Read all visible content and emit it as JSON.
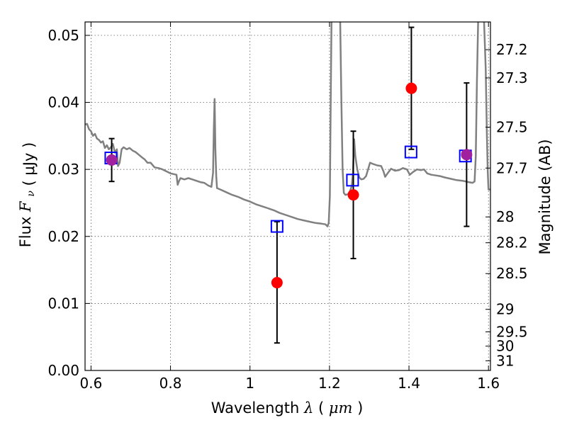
{
  "chart_data": {
    "type": "scatter",
    "xlabel": {
      "text": "Wavelength",
      "symbol": "λ",
      "unit_open": "(",
      "unit": "μm",
      "unit_close": ")"
    },
    "ylabel": {
      "text": "Flux",
      "symbol": "F",
      "subscript": "ν",
      "unit_open": "(",
      "unit": "μJy",
      "unit_close": ")"
    },
    "y2label": "Magnitude (AB)",
    "xlim": [
      0.585,
      1.605
    ],
    "ylim": [
      0.0,
      0.052
    ],
    "x_ticks": [
      {
        "value": 0.6,
        "label": "0.6"
      },
      {
        "value": 0.8,
        "label": "0.8"
      },
      {
        "value": 1.0,
        "label": "1"
      },
      {
        "value": 1.2,
        "label": "1.2"
      },
      {
        "value": 1.4,
        "label": "1.4"
      },
      {
        "value": 1.6,
        "label": "1.6"
      }
    ],
    "y_ticks": [
      {
        "value": 0.0,
        "label": "0.00"
      },
      {
        "value": 0.01,
        "label": "0.01"
      },
      {
        "value": 0.02,
        "label": "0.02"
      },
      {
        "value": 0.03,
        "label": "0.03"
      },
      {
        "value": 0.04,
        "label": "0.04"
      },
      {
        "value": 0.05,
        "label": "0.05"
      }
    ],
    "y2_ticks": [
      {
        "label": "27.2",
        "magnitude": 27.2
      },
      {
        "label": "27.3",
        "magnitude": 27.3
      },
      {
        "label": "27.5",
        "magnitude": 27.5
      },
      {
        "label": "27.7",
        "magnitude": 27.7
      },
      {
        "label": "28",
        "magnitude": 28.0
      },
      {
        "label": "28.2",
        "magnitude": 28.2
      },
      {
        "label": "28.5",
        "magnitude": 28.5
      },
      {
        "label": "29",
        "magnitude": 29.0
      },
      {
        "label": "29.5",
        "magnitude": 29.5
      },
      {
        "label": "30",
        "magnitude": 30.0
      },
      {
        "label": "31",
        "magnitude": 31.0
      }
    ],
    "grid": true,
    "series": [
      {
        "kind": "line",
        "color": "#808080",
        "points": [
          [
            0.585,
            0.0367
          ],
          [
            0.59,
            0.0368
          ],
          [
            0.595,
            0.036
          ],
          [
            0.6,
            0.0357
          ],
          [
            0.605,
            0.035
          ],
          [
            0.61,
            0.0353
          ],
          [
            0.615,
            0.0346
          ],
          [
            0.62,
            0.0344
          ],
          [
            0.625,
            0.034
          ],
          [
            0.63,
            0.0342
          ],
          [
            0.635,
            0.0332
          ],
          [
            0.64,
            0.0336
          ],
          [
            0.645,
            0.033
          ],
          [
            0.65,
            0.0333
          ],
          [
            0.655,
            0.0338
          ],
          [
            0.66,
            0.0325
          ],
          [
            0.665,
            0.033
          ],
          [
            0.668,
            0.0305
          ],
          [
            0.672,
            0.031
          ],
          [
            0.677,
            0.033
          ],
          [
            0.682,
            0.0333
          ],
          [
            0.69,
            0.033
          ],
          [
            0.697,
            0.0332
          ],
          [
            0.705,
            0.0328
          ],
          [
            0.712,
            0.0326
          ],
          [
            0.72,
            0.0322
          ],
          [
            0.728,
            0.0318
          ],
          [
            0.735,
            0.0315
          ],
          [
            0.742,
            0.031
          ],
          [
            0.75,
            0.031
          ],
          [
            0.76,
            0.0303
          ],
          [
            0.77,
            0.0302
          ],
          [
            0.78,
            0.03
          ],
          [
            0.79,
            0.0297
          ],
          [
            0.8,
            0.0294
          ],
          [
            0.808,
            0.0293
          ],
          [
            0.815,
            0.0292
          ],
          [
            0.818,
            0.0277
          ],
          [
            0.821,
            0.0282
          ],
          [
            0.825,
            0.0287
          ],
          [
            0.835,
            0.0285
          ],
          [
            0.845,
            0.0287
          ],
          [
            0.855,
            0.0285
          ],
          [
            0.865,
            0.0283
          ],
          [
            0.875,
            0.0281
          ],
          [
            0.885,
            0.028
          ],
          [
            0.895,
            0.0276
          ],
          [
            0.903,
            0.0274
          ],
          [
            0.907,
            0.0295
          ],
          [
            0.909,
            0.036
          ],
          [
            0.911,
            0.0405
          ],
          [
            0.913,
            0.033
          ],
          [
            0.915,
            0.029
          ],
          [
            0.917,
            0.0272
          ],
          [
            0.925,
            0.027
          ],
          [
            0.94,
            0.0266
          ],
          [
            0.955,
            0.0262
          ],
          [
            0.97,
            0.0259
          ],
          [
            0.985,
            0.0255
          ],
          [
            1.0,
            0.0252
          ],
          [
            1.015,
            0.0248
          ],
          [
            1.03,
            0.0245
          ],
          [
            1.045,
            0.0242
          ],
          [
            1.06,
            0.0239
          ],
          [
            1.075,
            0.0235
          ],
          [
            1.09,
            0.0232
          ],
          [
            1.105,
            0.0229
          ],
          [
            1.12,
            0.0226
          ],
          [
            1.135,
            0.0224
          ],
          [
            1.15,
            0.0222
          ],
          [
            1.165,
            0.022
          ],
          [
            1.18,
            0.0219
          ],
          [
            1.19,
            0.0218
          ],
          [
            1.195,
            0.0215
          ],
          [
            1.198,
            0.022
          ],
          [
            1.201,
            0.026
          ],
          [
            1.203,
            0.04
          ],
          [
            1.205,
            0.052
          ]
        ]
      },
      {
        "kind": "line",
        "color": "#808080",
        "points": [
          [
            1.227,
            0.052
          ],
          [
            1.23,
            0.04
          ],
          [
            1.233,
            0.03
          ],
          [
            1.236,
            0.0265
          ],
          [
            1.24,
            0.0262
          ],
          [
            1.247,
            0.0263
          ],
          [
            1.252,
            0.0268
          ],
          [
            1.256,
            0.0275
          ],
          [
            1.259,
            0.0295
          ],
          [
            1.262,
            0.0345
          ],
          [
            1.265,
            0.032
          ],
          [
            1.27,
            0.03
          ],
          [
            1.275,
            0.0288
          ],
          [
            1.28,
            0.0285
          ],
          [
            1.286,
            0.0286
          ],
          [
            1.292,
            0.029
          ],
          [
            1.297,
            0.03
          ],
          [
            1.302,
            0.031
          ],
          [
            1.31,
            0.0308
          ],
          [
            1.32,
            0.0306
          ],
          [
            1.33,
            0.0305
          ],
          [
            1.336,
            0.0297
          ],
          [
            1.34,
            0.0289
          ],
          [
            1.346,
            0.0294
          ],
          [
            1.355,
            0.0301
          ],
          [
            1.365,
            0.0298
          ],
          [
            1.375,
            0.0299
          ],
          [
            1.385,
            0.0302
          ],
          [
            1.395,
            0.03
          ],
          [
            1.402,
            0.0292
          ],
          [
            1.41,
            0.0296
          ],
          [
            1.42,
            0.03
          ],
          [
            1.43,
            0.0299
          ],
          [
            1.438,
            0.03
          ],
          [
            1.446,
            0.0294
          ],
          [
            1.456,
            0.0292
          ],
          [
            1.468,
            0.0291
          ],
          [
            1.478,
            0.029
          ],
          [
            1.49,
            0.0288
          ],
          [
            1.505,
            0.0286
          ],
          [
            1.52,
            0.0284
          ],
          [
            1.535,
            0.0283
          ],
          [
            1.55,
            0.0281
          ],
          [
            1.56,
            0.028
          ],
          [
            1.565,
            0.0282
          ],
          [
            1.568,
            0.032
          ],
          [
            1.571,
            0.043
          ],
          [
            1.574,
            0.052
          ]
        ]
      },
      {
        "kind": "line",
        "color": "#808080",
        "points": [
          [
            1.589,
            0.052
          ],
          [
            1.593,
            0.045
          ],
          [
            1.596,
            0.035
          ],
          [
            1.598,
            0.03
          ],
          [
            1.6,
            0.027
          ],
          [
            1.605,
            0.027
          ]
        ]
      },
      {
        "kind": "model_points",
        "marker": "open-square",
        "color": "#0000ff",
        "points": [
          {
            "x": 0.65,
            "y": 0.0317
          },
          {
            "x": 1.068,
            "y": 0.0215
          },
          {
            "x": 1.258,
            "y": 0.0284
          },
          {
            "x": 1.405,
            "y": 0.0326
          },
          {
            "x": 1.542,
            "y": 0.032
          }
        ]
      },
      {
        "kind": "observations",
        "marker": "filled-circle",
        "color": "#ff0000",
        "errorbar_color": "#000000",
        "points": [
          {
            "x": 0.652,
            "y": 0.0314,
            "yerr_low": 0.0282,
            "yerr_high": 0.0346
          },
          {
            "x": 1.068,
            "y": 0.0131,
            "yerr_low": 0.0041,
            "yerr_high": 0.0222
          },
          {
            "x": 1.26,
            "y": 0.0262,
            "yerr_low": 0.0167,
            "yerr_high": 0.0357
          },
          {
            "x": 1.406,
            "y": 0.0421,
            "yerr_low": 0.033,
            "yerr_high": 0.0512
          },
          {
            "x": 1.545,
            "y": 0.0322,
            "yerr_low": 0.0215,
            "yerr_high": 0.0429
          }
        ]
      }
    ],
    "overlap_color": "#a020a0"
  }
}
